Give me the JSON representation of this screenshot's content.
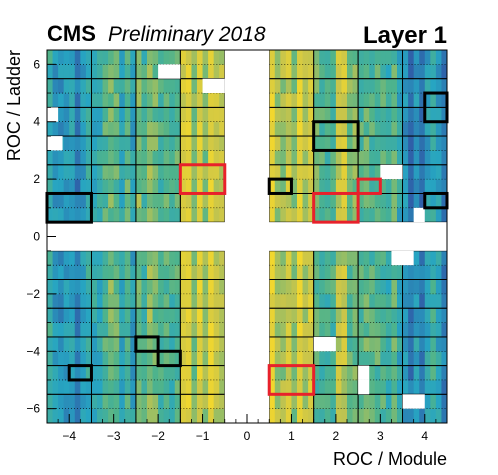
{
  "header": {
    "experiment": "CMS",
    "status": "Preliminary 2018",
    "layer": "Layer 1"
  },
  "chart_data": {
    "type": "heatmap",
    "xlabel": "ROC / Module",
    "ylabel": "ROC / Ladder",
    "xlim": [
      -4.5,
      4.5
    ],
    "ylim": [
      -6.5,
      6.5
    ],
    "x_ticks": [
      "−4",
      "−3",
      "−2",
      "−1",
      "0",
      "1",
      "2",
      "3",
      "4"
    ],
    "y_ticks": [
      "−6",
      "−4",
      "−2",
      "0",
      "2",
      "4",
      "6"
    ],
    "rocs_per_module_x": 8,
    "rocs_per_ladder_y": 2,
    "empty_region": {
      "x": [
        -0.5,
        0.5
      ],
      "y": [
        -0.5,
        0.5
      ]
    },
    "colors": {
      "low": "#2f5fa8",
      "mid_low": "#27a5c2",
      "mid": "#4eb38c",
      "mid_high": "#c9c54a",
      "high": "#f2d72e",
      "highlight_black": "#000000",
      "highlight_red": "#e8212b"
    },
    "intensity_by_module": {
      "modules": [
        -4,
        -3,
        -2,
        -1,
        1,
        2,
        3,
        4
      ],
      "upper_half": [
        0.25,
        0.45,
        0.55,
        0.75,
        0.75,
        0.65,
        0.5,
        0.2
      ],
      "lower_half": [
        0.25,
        0.45,
        0.55,
        0.75,
        0.75,
        0.6,
        0.5,
        0.25
      ]
    },
    "masked_rocs": [
      {
        "x": -2.0,
        "y": 5.5,
        "w": 0.5,
        "h": 0.5
      },
      {
        "x": -1.0,
        "y": 5.0,
        "w": 0.5,
        "h": 0.5
      },
      {
        "x": -4.5,
        "y": 4.0,
        "w": 0.25,
        "h": 0.5
      },
      {
        "x": -4.5,
        "y": 3.0,
        "w": 0.35,
        "h": 0.5
      },
      {
        "x": 3.0,
        "y": 2.0,
        "w": 0.5,
        "h": 0.5
      },
      {
        "x": 3.75,
        "y": 0.5,
        "w": 0.25,
        "h": 0.5
      },
      {
        "x": 3.25,
        "y": -1.0,
        "w": 0.5,
        "h": 0.5
      },
      {
        "x": 1.5,
        "y": -4.0,
        "w": 0.5,
        "h": 0.5
      },
      {
        "x": 2.5,
        "y": -5.0,
        "w": 0.25,
        "h": 0.5
      },
      {
        "x": 2.5,
        "y": -5.5,
        "w": 0.25,
        "h": 0.5
      },
      {
        "x": 3.5,
        "y": -6.0,
        "w": 0.5,
        "h": 0.5
      },
      {
        "x": 3.5,
        "y": -7.0,
        "w": 0.5,
        "h": 0.5
      }
    ],
    "highlighted_black": [
      {
        "x": [
          -4.5,
          -3.5
        ],
        "y": [
          0.5,
          1.5
        ]
      },
      {
        "x": [
          0.5,
          1.0
        ],
        "y": [
          1.5,
          2.0
        ]
      },
      {
        "x": [
          1.5,
          2.5
        ],
        "y": [
          3.0,
          4.0
        ]
      },
      {
        "x": [
          4.0,
          4.5
        ],
        "y": [
          1.0,
          1.5
        ]
      },
      {
        "x": [
          4.0,
          4.5
        ],
        "y": [
          4.0,
          5.0
        ]
      },
      {
        "x": [
          -2.5,
          -2.0
        ],
        "y": [
          -4.0,
          -3.5
        ]
      },
      {
        "x": [
          -2.0,
          -1.5
        ],
        "y": [
          -4.5,
          -4.0
        ]
      },
      {
        "x": [
          -4.0,
          -3.5
        ],
        "y": [
          -5.0,
          -4.5
        ]
      }
    ],
    "highlighted_red": [
      {
        "x": [
          -1.5,
          -0.5
        ],
        "y": [
          1.5,
          2.5
        ]
      },
      {
        "x": [
          1.5,
          2.5
        ],
        "y": [
          0.5,
          1.5
        ]
      },
      {
        "x": [
          2.5,
          3.0
        ],
        "y": [
          1.5,
          2.0
        ]
      },
      {
        "x": [
          0.5,
          1.5
        ],
        "y": [
          -5.5,
          -4.5
        ]
      }
    ]
  }
}
